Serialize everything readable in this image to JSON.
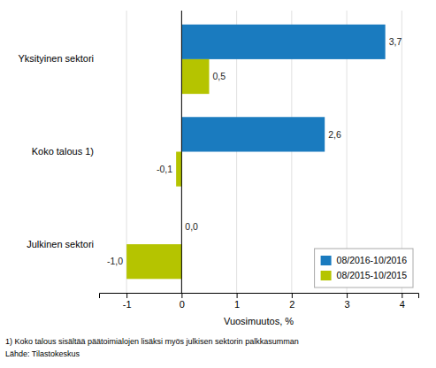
{
  "chart_data": {
    "type": "bar",
    "orientation": "horizontal",
    "categories": [
      "Julkinen sektori",
      "Koko talous 1)",
      "Yksityinen sektori"
    ],
    "series": [
      {
        "name": "08/2016-10/2016",
        "color": "#1a7bbf",
        "values": [
          0.0,
          2.6,
          3.7
        ],
        "value_labels": [
          "0,0",
          "2,6",
          "3,7"
        ]
      },
      {
        "name": "08/2015-10/2015",
        "color": "#b5c400",
        "values": [
          -1.0,
          -0.1,
          0.5
        ],
        "value_labels": [
          "-1,0",
          "-0,1",
          "0,5"
        ]
      }
    ],
    "xlabel": "Vuosimuutos, %",
    "xlim": [
      -1.5,
      4.3
    ],
    "xticks": [
      -1,
      0,
      1,
      2,
      3,
      4
    ],
    "grid": true,
    "legend": "lower right",
    "data_labels": true,
    "annotations": [
      "1) Koko talous sisältää päätoimialojen lisäksi myös julkisen sektorin palkkasumman",
      "Lähde: Tilastokeskus"
    ]
  }
}
